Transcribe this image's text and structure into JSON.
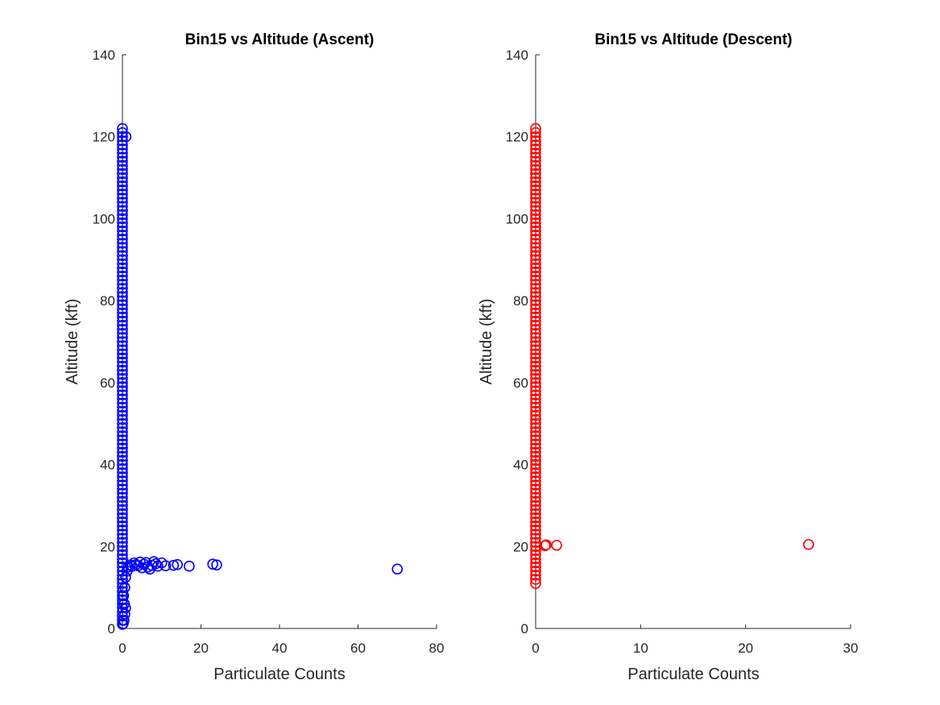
{
  "chart_data": [
    {
      "type": "scatter",
      "title": "Bin15 vs Altitude (Ascent)",
      "xlabel": "Particulate Counts",
      "ylabel": "Altitude (kft)",
      "xlim": [
        0,
        80
      ],
      "ylim": [
        0,
        140
      ],
      "xticks": [
        0,
        20,
        40,
        60,
        80
      ],
      "yticks": [
        0,
        20,
        40,
        60,
        80,
        100,
        120,
        140
      ],
      "color": "#0000ff",
      "marker": "circle-open",
      "grid": false,
      "column": {
        "x": 0,
        "y_min": 1,
        "y_max": 122,
        "y_step": 1
      },
      "points": [
        [
          0.2,
          1.2
        ],
        [
          0.4,
          2.0
        ],
        [
          0.6,
          3.5
        ],
        [
          0.8,
          5.0
        ],
        [
          0.5,
          6.0
        ],
        [
          0.3,
          8.0
        ],
        [
          0.6,
          10.0
        ],
        [
          0.8,
          12.5
        ],
        [
          1.2,
          14.0
        ],
        [
          0.9,
          120.0
        ],
        [
          1.5,
          15.0
        ],
        [
          2.0,
          15.5
        ],
        [
          2.5,
          15.2
        ],
        [
          3.0,
          16.0
        ],
        [
          3.5,
          15.6
        ],
        [
          4.0,
          15.3
        ],
        [
          4.5,
          16.2
        ],
        [
          5.0,
          14.8
        ],
        [
          5.5,
          15.7
        ],
        [
          6.0,
          16.1
        ],
        [
          6.5,
          15.0
        ],
        [
          7.0,
          14.5
        ],
        [
          7.5,
          15.4
        ],
        [
          8.0,
          16.3
        ],
        [
          8.5,
          15.8
        ],
        [
          9.0,
          15.2
        ],
        [
          10.0,
          16.0
        ],
        [
          11.0,
          15.3
        ],
        [
          13.0,
          15.4
        ],
        [
          14.0,
          15.6
        ],
        [
          17.0,
          15.2
        ],
        [
          23.0,
          15.7
        ],
        [
          24.0,
          15.5
        ],
        [
          70.0,
          14.5
        ]
      ]
    },
    {
      "type": "scatter",
      "title": "Bin15 vs Altitude (Descent)",
      "xlabel": "Particulate Counts",
      "ylabel": "Altitude (kft)",
      "xlim": [
        0,
        30
      ],
      "ylim": [
        0,
        140
      ],
      "xticks": [
        0,
        10,
        20,
        30
      ],
      "yticks": [
        0,
        20,
        40,
        60,
        80,
        100,
        120,
        140
      ],
      "color": "#ff0000",
      "marker": "circle-open",
      "grid": false,
      "column": {
        "x": 0,
        "y_min": 11,
        "y_max": 122,
        "y_step": 1
      },
      "points": [
        [
          0.9,
          20.2
        ],
        [
          1.0,
          20.4
        ],
        [
          2.0,
          20.3
        ],
        [
          26.0,
          20.5
        ]
      ]
    }
  ]
}
